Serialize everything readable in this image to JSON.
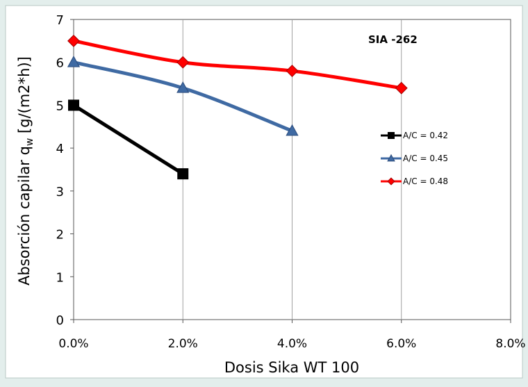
{
  "chart_data": {
    "type": "line",
    "title": "",
    "annotation": "SIA -262",
    "xlabel": "Dosis Sika WT 100",
    "ylabel": "Absorción capilar q",
    "ylabel_sub": "w",
    "ylabel_unit": " [g/(m2*h)]",
    "xlim": [
      0,
      0.08
    ],
    "ylim": [
      0,
      7
    ],
    "x_ticks": [
      "0.0%",
      "2.0%",
      "4.0%",
      "6.0%",
      "8.0%"
    ],
    "x_tick_values": [
      0,
      0.02,
      0.04,
      0.06,
      0.08
    ],
    "y_ticks": [
      "0",
      "1",
      "2",
      "3",
      "4",
      "5",
      "6",
      "7"
    ],
    "y_tick_values": [
      0,
      1,
      2,
      3,
      4,
      5,
      6,
      7
    ],
    "grid": "vertical",
    "legend_position": "right",
    "series": [
      {
        "name": "A/C = 0.42",
        "color": "#000000",
        "marker": "square",
        "x": [
          0,
          0.02
        ],
        "y": [
          5.0,
          3.4
        ]
      },
      {
        "name": "A/C = 0.45",
        "color": "#3f6aa3",
        "marker": "triangle",
        "x": [
          0,
          0.02,
          0.04
        ],
        "y": [
          6.0,
          5.4,
          4.4
        ]
      },
      {
        "name": "A/C = 0.48",
        "color": "#ff0000",
        "marker": "diamond",
        "x": [
          0,
          0.02,
          0.04,
          0.06
        ],
        "y": [
          6.5,
          6.0,
          5.8,
          5.4
        ]
      }
    ]
  }
}
